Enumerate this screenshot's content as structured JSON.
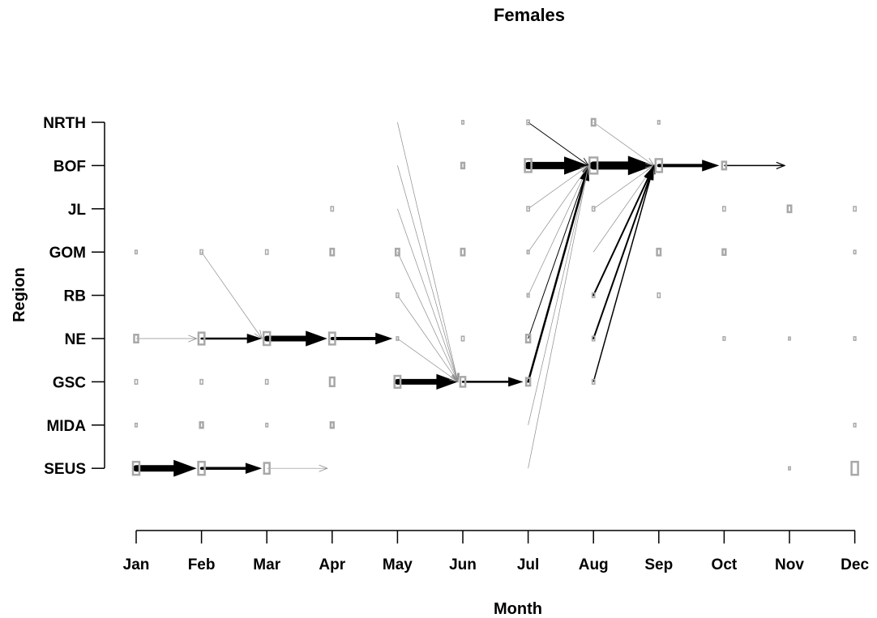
{
  "chart_data": {
    "type": "scatter",
    "title": "Females",
    "xlabel": "Month",
    "ylabel": "Region",
    "grid": false,
    "legend": "none",
    "months": [
      "Jan",
      "Feb",
      "Mar",
      "Apr",
      "May",
      "Jun",
      "Jul",
      "Aug",
      "Sep",
      "Oct",
      "Nov",
      "Dec"
    ],
    "regions": [
      "NRTH",
      "BOF",
      "JL",
      "GOM",
      "RB",
      "NE",
      "GSC",
      "MIDA",
      "SEUS"
    ],
    "colors": {
      "box": "#a8a8a8",
      "arrow": "#000000",
      "arrow_light": "#8c8c8c"
    },
    "points": [
      {
        "month": "Jan",
        "region": "GOM",
        "size": 0.1
      },
      {
        "month": "Jan",
        "region": "NE",
        "size": 0.5
      },
      {
        "month": "Jan",
        "region": "GSC",
        "size": 0.2
      },
      {
        "month": "Jan",
        "region": "MIDA",
        "size": 0.1
      },
      {
        "month": "Jan",
        "region": "SEUS",
        "size": 1.0
      },
      {
        "month": "Feb",
        "region": "GOM",
        "size": 0.2
      },
      {
        "month": "Feb",
        "region": "NE",
        "size": 0.9
      },
      {
        "month": "Feb",
        "region": "GSC",
        "size": 0.2
      },
      {
        "month": "Feb",
        "region": "MIDA",
        "size": 0.3
      },
      {
        "month": "Feb",
        "region": "SEUS",
        "size": 1.0
      },
      {
        "month": "Mar",
        "region": "GOM",
        "size": 0.2
      },
      {
        "month": "Mar",
        "region": "NE",
        "size": 1.0
      },
      {
        "month": "Mar",
        "region": "GSC",
        "size": 0.2
      },
      {
        "month": "Mar",
        "region": "MIDA",
        "size": 0.1
      },
      {
        "month": "Mar",
        "region": "SEUS",
        "size": 0.8
      },
      {
        "month": "Apr",
        "region": "JL",
        "size": 0.2
      },
      {
        "month": "Apr",
        "region": "GOM",
        "size": 0.4
      },
      {
        "month": "Apr",
        "region": "NE",
        "size": 0.9
      },
      {
        "month": "Apr",
        "region": "GSC",
        "size": 0.6
      },
      {
        "month": "Apr",
        "region": "MIDA",
        "size": 0.3
      },
      {
        "month": "May",
        "region": "GOM",
        "size": 0.4
      },
      {
        "month": "May",
        "region": "RB",
        "size": 0.2
      },
      {
        "month": "May",
        "region": "NE",
        "size": 0.1
      },
      {
        "month": "May",
        "region": "GSC",
        "size": 0.9
      },
      {
        "month": "Jun",
        "region": "NRTH",
        "size": 0.1
      },
      {
        "month": "Jun",
        "region": "BOF",
        "size": 0.3
      },
      {
        "month": "Jun",
        "region": "GOM",
        "size": 0.4
      },
      {
        "month": "Jun",
        "region": "NE",
        "size": 0.2
      },
      {
        "month": "Jun",
        "region": "GSC",
        "size": 0.7
      },
      {
        "month": "Jul",
        "region": "NRTH",
        "size": 0.2
      },
      {
        "month": "Jul",
        "region": "BOF",
        "size": 1.0
      },
      {
        "month": "Jul",
        "region": "JL",
        "size": 0.2
      },
      {
        "month": "Jul",
        "region": "GOM",
        "size": 0.1
      },
      {
        "month": "Jul",
        "region": "RB",
        "size": 0.1
      },
      {
        "month": "Jul",
        "region": "NE",
        "size": 0.5
      },
      {
        "month": "Jul",
        "region": "GSC",
        "size": 0.5
      },
      {
        "month": "Aug",
        "region": "NRTH",
        "size": 0.4
      },
      {
        "month": "Aug",
        "region": "BOF",
        "size": 1.3
      },
      {
        "month": "Aug",
        "region": "JL",
        "size": 0.2
      },
      {
        "month": "Aug",
        "region": "RB",
        "size": 0.2
      },
      {
        "month": "Aug",
        "region": "NE",
        "size": 0.2
      },
      {
        "month": "Aug",
        "region": "GSC",
        "size": 0.2
      },
      {
        "month": "Sep",
        "region": "NRTH",
        "size": 0.1
      },
      {
        "month": "Sep",
        "region": "BOF",
        "size": 1.0
      },
      {
        "month": "Sep",
        "region": "GOM",
        "size": 0.4
      },
      {
        "month": "Sep",
        "region": "RB",
        "size": 0.2
      },
      {
        "month": "Oct",
        "region": "BOF",
        "size": 0.5
      },
      {
        "month": "Oct",
        "region": "JL",
        "size": 0.2
      },
      {
        "month": "Oct",
        "region": "GOM",
        "size": 0.3
      },
      {
        "month": "Oct",
        "region": "NE",
        "size": 0.1
      },
      {
        "month": "Nov",
        "region": "JL",
        "size": 0.4
      },
      {
        "month": "Nov",
        "region": "NE",
        "size": 0.05
      },
      {
        "month": "Nov",
        "region": "SEUS",
        "size": 0.05
      },
      {
        "month": "Dec",
        "region": "JL",
        "size": 0.2
      },
      {
        "month": "Dec",
        "region": "GOM",
        "size": 0.1
      },
      {
        "month": "Dec",
        "region": "NE",
        "size": 0.1
      },
      {
        "month": "Dec",
        "region": "MIDA",
        "size": 0.1
      },
      {
        "month": "Dec",
        "region": "SEUS",
        "size": 1.0
      }
    ],
    "transitions": [
      {
        "from": "Jan",
        "to": "Feb",
        "from_region": "SEUS",
        "to_region": "SEUS",
        "weight": 8
      },
      {
        "from": "Feb",
        "to": "Mar",
        "from_region": "SEUS",
        "to_region": "SEUS",
        "weight": 3.5
      },
      {
        "from": "Mar",
        "to": "Apr",
        "from_region": "SEUS",
        "to_region": "SEUS",
        "weight": 0.5
      },
      {
        "from": "Jan",
        "to": "Feb",
        "from_region": "NE",
        "to_region": "NE",
        "weight": 0.5
      },
      {
        "from": "Feb",
        "to": "Mar",
        "from_region": "NE",
        "to_region": "NE",
        "weight": 2.5
      },
      {
        "from": "Feb",
        "to": "Mar",
        "from_region": "GOM",
        "to_region": "NE",
        "weight": 0.4
      },
      {
        "from": "Mar",
        "to": "Apr",
        "from_region": "NE",
        "to_region": "NE",
        "weight": 7
      },
      {
        "from": "Apr",
        "to": "May",
        "from_region": "NE",
        "to_region": "NE",
        "weight": 4
      },
      {
        "from": "May",
        "to": "Jun",
        "from_region": "GSC",
        "to_region": "GSC",
        "weight": 7
      },
      {
        "from": "May",
        "to": "Jun",
        "from_region": "NRTH",
        "to_region": "GSC",
        "weight": 0.5
      },
      {
        "from": "May",
        "to": "Jun",
        "from_region": "BOF",
        "to_region": "GSC",
        "weight": 0.5
      },
      {
        "from": "May",
        "to": "Jun",
        "from_region": "JL",
        "to_region": "GSC",
        "weight": 0.5
      },
      {
        "from": "May",
        "to": "Jun",
        "from_region": "GOM",
        "to_region": "GSC",
        "weight": 0.5
      },
      {
        "from": "May",
        "to": "Jun",
        "from_region": "RB",
        "to_region": "GSC",
        "weight": 0.5
      },
      {
        "from": "May",
        "to": "Jun",
        "from_region": "NE",
        "to_region": "GSC",
        "weight": 0.5
      },
      {
        "from": "Jun",
        "to": "Jul",
        "from_region": "GSC",
        "to_region": "GSC",
        "weight": 2.5
      },
      {
        "from": "Jul",
        "to": "Aug",
        "from_region": "BOF",
        "to_region": "BOF",
        "weight": 9
      },
      {
        "from": "Jul",
        "to": "Aug",
        "from_region": "NRTH",
        "to_region": "BOF",
        "weight": 1
      },
      {
        "from": "Jul",
        "to": "Aug",
        "from_region": "JL",
        "to_region": "BOF",
        "weight": 0.5
      },
      {
        "from": "Jul",
        "to": "Aug",
        "from_region": "GOM",
        "to_region": "BOF",
        "weight": 0.5
      },
      {
        "from": "Jul",
        "to": "Aug",
        "from_region": "RB",
        "to_region": "BOF",
        "weight": 0.5
      },
      {
        "from": "Jul",
        "to": "Aug",
        "from_region": "NE",
        "to_region": "BOF",
        "weight": 1
      },
      {
        "from": "Jul",
        "to": "Aug",
        "from_region": "GSC",
        "to_region": "BOF",
        "weight": 2.5
      },
      {
        "from": "Jul",
        "to": "Aug",
        "from_region": "MIDA",
        "to_region": "BOF",
        "weight": 0.5
      },
      {
        "from": "Jul",
        "to": "Aug",
        "from_region": "SEUS",
        "to_region": "BOF",
        "weight": 0.5
      },
      {
        "from": "Aug",
        "to": "Sep",
        "from_region": "BOF",
        "to_region": "BOF",
        "weight": 10
      },
      {
        "from": "Aug",
        "to": "Sep",
        "from_region": "NRTH",
        "to_region": "BOF",
        "weight": 0.5
      },
      {
        "from": "Aug",
        "to": "Sep",
        "from_region": "JL",
        "to_region": "BOF",
        "weight": 0.5
      },
      {
        "from": "Aug",
        "to": "Sep",
        "from_region": "GOM",
        "to_region": "BOF",
        "weight": 0.5
      },
      {
        "from": "Aug",
        "to": "Sep",
        "from_region": "RB",
        "to_region": "BOF",
        "weight": 2
      },
      {
        "from": "Aug",
        "to": "Sep",
        "from_region": "NE",
        "to_region": "BOF",
        "weight": 2
      },
      {
        "from": "Aug",
        "to": "Sep",
        "from_region": "GSC",
        "to_region": "BOF",
        "weight": 1.5
      },
      {
        "from": "Sep",
        "to": "Oct",
        "from_region": "BOF",
        "to_region": "BOF",
        "weight": 4
      },
      {
        "from": "Oct",
        "to": "Nov",
        "from_region": "BOF",
        "to_region": "BOF",
        "weight": 1.5
      }
    ]
  }
}
